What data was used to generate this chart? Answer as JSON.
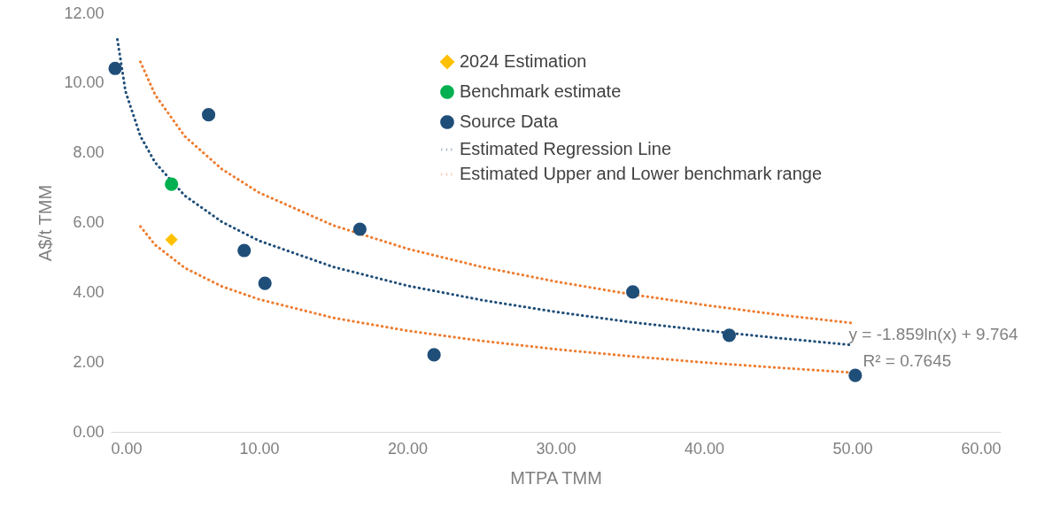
{
  "chart_data": {
    "type": "scatter",
    "xlabel": "MTPA TMM",
    "ylabel": "A$/t TMM",
    "xlim": [
      0,
      60
    ],
    "ylim": [
      0,
      12
    ],
    "xticks": [
      {
        "value": 0,
        "label": "0.00"
      },
      {
        "value": 10,
        "label": "10.00"
      },
      {
        "value": 20,
        "label": "20.00"
      },
      {
        "value": 30,
        "label": "30.00"
      },
      {
        "value": 40,
        "label": "40.00"
      },
      {
        "value": 50,
        "label": "50.00"
      },
      {
        "value": 60,
        "label": "60.00"
      }
    ],
    "yticks": [
      {
        "value": 0,
        "label": "0.00"
      },
      {
        "value": 2,
        "label": "2.00"
      },
      {
        "value": 4,
        "label": "4.00"
      },
      {
        "value": 6,
        "label": "6.00"
      },
      {
        "value": 8,
        "label": "8.00"
      },
      {
        "value": 10,
        "label": "10.00"
      },
      {
        "value": 12,
        "label": "12.00"
      }
    ],
    "legend": "top",
    "grid": false,
    "series": [
      {
        "name": "2024 Estimation",
        "marker": "diamond",
        "color": "#ffc000",
        "x": [
          4.1
        ],
        "values": [
          5.51
        ]
      },
      {
        "name": "Benchmark estimate",
        "marker": "circle",
        "color": "#00b050",
        "x": [
          4.1
        ],
        "values": [
          7.1
        ]
      },
      {
        "name": "Source Data",
        "marker": "circle",
        "color": "#1f4e79",
        "x": [
          0.3,
          6.6,
          9.0,
          10.4,
          16.8,
          21.8,
          35.2,
          41.7,
          50.2
        ],
        "values": [
          10.42,
          9.09,
          5.2,
          4.26,
          5.81,
          2.21,
          4.01,
          2.77,
          1.62
        ]
      },
      {
        "name": "Estimated Regression Line",
        "type": "line",
        "line_style": "dotted",
        "color": "#1f4e79",
        "x": [
          0.45,
          1,
          2,
          3,
          5,
          7.5,
          10,
          15,
          20,
          25,
          30,
          35,
          40,
          45,
          50
        ],
        "values": [
          11.25,
          9.76,
          8.48,
          7.72,
          6.77,
          6.02,
          5.48,
          4.73,
          4.19,
          3.78,
          3.44,
          3.15,
          2.91,
          2.69,
          2.49
        ]
      },
      {
        "name": "Estimated Upper and Lower benchmark range",
        "type": "line",
        "line_style": "dotted",
        "color": "#ed7d31",
        "x": [
          2,
          3,
          5,
          7.5,
          10,
          15,
          20,
          25,
          30,
          35,
          40,
          45,
          50
        ],
        "values": [
          10.61,
          9.66,
          8.47,
          7.53,
          6.86,
          5.92,
          5.25,
          4.73,
          4.31,
          3.95,
          3.64,
          3.36,
          3.12
        ]
      },
      {
        "type": "line",
        "line_style": "dotted",
        "color": "#ed7d31",
        "x": [
          2,
          3,
          5,
          7.5,
          10,
          15,
          20,
          25,
          30,
          35,
          40,
          45,
          50
        ],
        "values": [
          5.89,
          5.36,
          4.7,
          4.17,
          3.8,
          3.27,
          2.9,
          2.61,
          2.37,
          2.17,
          1.99,
          1.84,
          1.7
        ]
      }
    ],
    "annotations": [
      {
        "text": "y = -1.859ln(x) + 9.764",
        "x": 50,
        "y": 2.49
      },
      "R² = 0.7645"
    ]
  }
}
